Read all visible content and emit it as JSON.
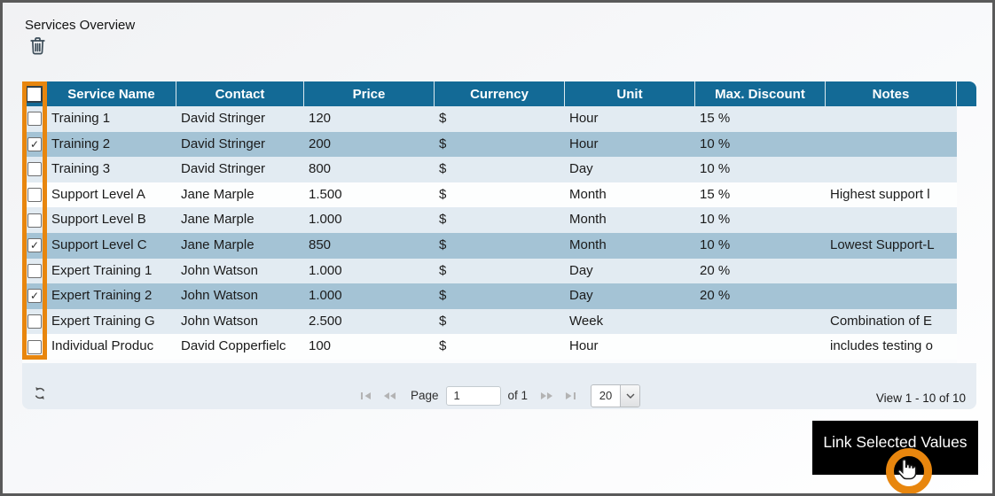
{
  "page": {
    "title": "Services Overview"
  },
  "table": {
    "columns": [
      "Service Name",
      "Contact",
      "Price",
      "Currency",
      "Unit",
      "Max. Discount",
      "Notes"
    ],
    "check_glyph": "✓",
    "select_all_checked": false,
    "rows": [
      {
        "checked": false,
        "selected": false,
        "service_name": "Training 1",
        "contact": "David Stringer",
        "price": "120",
        "currency": "$",
        "unit": "Hour",
        "max_discount": "15 %",
        "notes": ""
      },
      {
        "checked": true,
        "selected": true,
        "service_name": "Training 2",
        "contact": "David Stringer",
        "price": "200",
        "currency": "$",
        "unit": "Hour",
        "max_discount": "10 %",
        "notes": ""
      },
      {
        "checked": false,
        "selected": false,
        "service_name": "Training 3",
        "contact": "David Stringer",
        "price": "800",
        "currency": "$",
        "unit": "Day",
        "max_discount": "10 %",
        "notes": ""
      },
      {
        "checked": false,
        "selected": false,
        "service_name": "Support Level A",
        "contact": "Jane Marple",
        "price": "1.500",
        "currency": "$",
        "unit": "Month",
        "max_discount": "15 %",
        "notes": "Highest support l"
      },
      {
        "checked": false,
        "selected": false,
        "service_name": "Support Level B",
        "contact": "Jane Marple",
        "price": "1.000",
        "currency": "$",
        "unit": "Month",
        "max_discount": "10 %",
        "notes": ""
      },
      {
        "checked": true,
        "selected": true,
        "service_name": "Support Level C",
        "contact": "Jane Marple",
        "price": "850",
        "currency": "$",
        "unit": "Month",
        "max_discount": "10 %",
        "notes": "Lowest Support-L"
      },
      {
        "checked": false,
        "selected": false,
        "service_name": "Expert Training 1",
        "contact": "John Watson",
        "price": "1.000",
        "currency": "$",
        "unit": "Day",
        "max_discount": "20 %",
        "notes": ""
      },
      {
        "checked": true,
        "selected": true,
        "service_name": "Expert Training 2",
        "contact": "John Watson",
        "price": "1.000",
        "currency": "$",
        "unit": "Day",
        "max_discount": "20 %",
        "notes": ""
      },
      {
        "checked": false,
        "selected": false,
        "service_name": "Expert Training G",
        "contact": "John Watson",
        "price": "2.500",
        "currency": "$",
        "unit": "Week",
        "max_discount": "",
        "notes": "Combination of E"
      },
      {
        "checked": false,
        "selected": false,
        "service_name": "Individual Produc",
        "contact": "David Copperfielc",
        "price": "100",
        "currency": "$",
        "unit": "Hour",
        "max_discount": "",
        "notes": "includes testing o"
      }
    ]
  },
  "pager": {
    "page_label": "Page",
    "page_value": "1",
    "of_label": "of 1",
    "page_size": "20",
    "view_text": "View 1 - 10 of 10",
    "icons": {
      "refresh": "refresh-icon",
      "first": "first-page-icon",
      "prev": "previous-page-icon",
      "next": "next-page-icon",
      "last": "last-page-icon",
      "page_size_dropdown": "chevron-down-icon"
    }
  },
  "tooltip": {
    "label": "Link Selected Values"
  },
  "colors": {
    "header_bg": "#136a96",
    "row_light": "#e2ebf2",
    "row_white": "#fdfefe",
    "row_selected": "#a4c3d5",
    "footer_bg": "#e7edf3",
    "accent_orange": "#e8860e",
    "tooltip_bg": "#000000",
    "tooltip_text": "#ffffff"
  }
}
